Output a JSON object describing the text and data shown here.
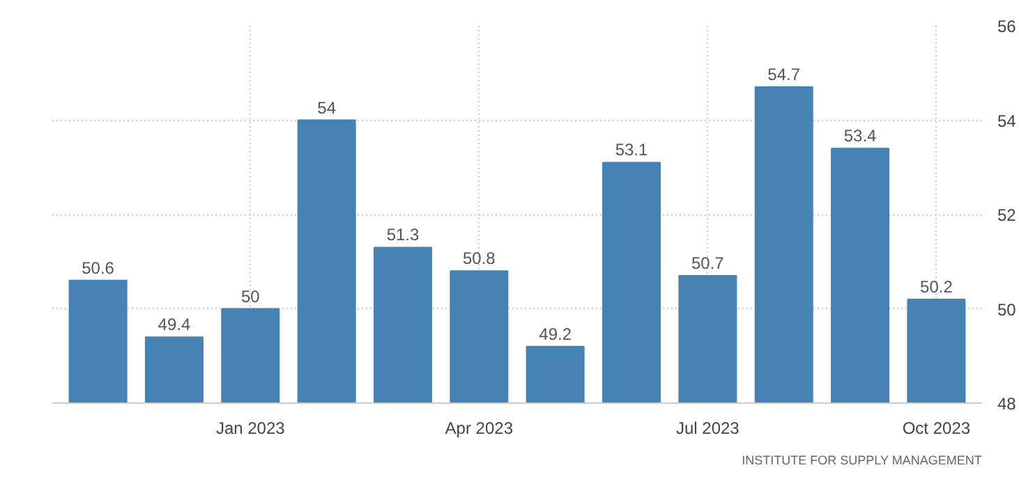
{
  "chart_data": {
    "type": "bar",
    "categories": [
      null,
      null,
      "Jan 2023",
      null,
      null,
      "Apr 2023",
      null,
      null,
      "Jul 2023",
      null,
      null,
      "Oct 2023"
    ],
    "values": [
      50.6,
      49.4,
      50,
      54,
      51.3,
      50.8,
      49.2,
      53.1,
      50.7,
      54.7,
      53.4,
      50.2
    ],
    "color": "#4682b4",
    "ylim": [
      48,
      56
    ],
    "yticks": [
      48,
      50,
      52,
      54,
      56
    ],
    "grid": true,
    "data_labels": true,
    "annotations": [
      "INSTITUTE FOR SUPPLY MANAGEMENT"
    ]
  }
}
